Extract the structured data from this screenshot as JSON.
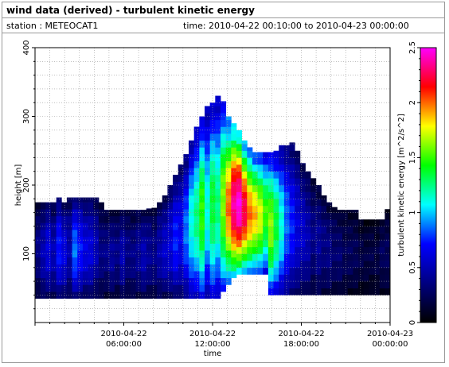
{
  "header": {
    "title": "wind data (derived) - turbulent kinetic energy",
    "station": "station : METEOCAT1",
    "time_range": "time: 2010-04-22 00:10:00 to 2010-04-23 00:00:00"
  },
  "chart_data": {
    "type": "heatmap",
    "title": "wind data (derived) - turbulent kinetic energy",
    "xlabel": "time",
    "ylabel": "height [m]",
    "colorbar_label": "turbulent kinetic energy [m^2/s^2]",
    "x_ticks": [
      {
        "line1": "2010-04-22",
        "line2": "06:00:00",
        "hours": 6
      },
      {
        "line1": "2010-04-22",
        "line2": "12:00:00",
        "hours": 12
      },
      {
        "line1": "2010-04-22",
        "line2": "18:00:00",
        "hours": 18
      },
      {
        "line1": "2010-04-23",
        "line2": "00:00:00",
        "hours": 24
      }
    ],
    "xlim_hours": [
      0,
      24
    ],
    "ylim": [
      0,
      400
    ],
    "y_ticks": [
      100,
      200,
      300,
      400
    ],
    "clim": [
      0,
      2.5
    ],
    "c_ticks": [
      "0",
      "0.5",
      "1",
      "1.5",
      "2",
      "2.5"
    ],
    "grid": true,
    "colormap": [
      "#000000",
      "#000080",
      "#0000ff",
      "#00ffff",
      "#00ff00",
      "#ffff00",
      "#ff0000",
      "#ff00ff"
    ],
    "data_top_height_m": [
      175,
      175,
      175,
      175,
      182,
      175,
      182,
      182,
      182,
      182,
      182,
      182,
      175,
      164,
      164,
      164,
      164,
      164,
      164,
      164,
      164,
      166,
      167,
      175,
      185,
      200,
      215,
      230,
      245,
      265,
      285,
      300,
      315,
      320,
      330,
      322,
      300,
      290,
      280,
      265,
      255,
      248,
      248,
      248,
      248,
      250,
      258,
      258,
      262,
      250,
      232,
      220,
      210,
      200,
      185,
      175,
      168,
      164,
      164,
      164,
      164,
      150,
      150,
      150,
      150,
      150,
      165
    ],
    "data_bottom_height_m": [
      35,
      35,
      35,
      35,
      35,
      35,
      35,
      35,
      35,
      35,
      35,
      35,
      35,
      35,
      35,
      35,
      35,
      35,
      35,
      35,
      35,
      35,
      35,
      35,
      35,
      35,
      35,
      35,
      35,
      35,
      35,
      35,
      35,
      35,
      35,
      45,
      55,
      65,
      70,
      70,
      70,
      70,
      70,
      70,
      40,
      40,
      40,
      40,
      40,
      40,
      40,
      40,
      40,
      40,
      40,
      40,
      40,
      40,
      40,
      40,
      40,
      40,
      40,
      40,
      40,
      40,
      40
    ],
    "data_column_mean_tke": [
      0.3,
      0.4,
      0.5,
      0.4,
      0.6,
      0.5,
      0.4,
      0.7,
      0.6,
      0.5,
      0.5,
      0.4,
      0.3,
      0.3,
      0.35,
      0.3,
      0.4,
      0.3,
      0.3,
      0.35,
      0.4,
      0.35,
      0.3,
      0.4,
      0.45,
      0.5,
      0.6,
      0.55,
      0.7,
      0.9,
      1.0,
      1.2,
      0.9,
      1.1,
      1.0,
      1.3,
      1.6,
      1.9,
      2.0,
      1.8,
      1.6,
      1.5,
      1.4,
      1.2,
      1.3,
      1.1,
      0.9,
      0.7,
      0.6,
      0.5,
      0.45,
      0.4,
      0.3,
      0.35,
      0.3,
      0.3,
      0.25,
      0.25,
      0.2,
      0.2,
      0.2,
      0.15,
      0.15,
      0.15,
      0.15,
      0.2,
      0.2
    ]
  }
}
